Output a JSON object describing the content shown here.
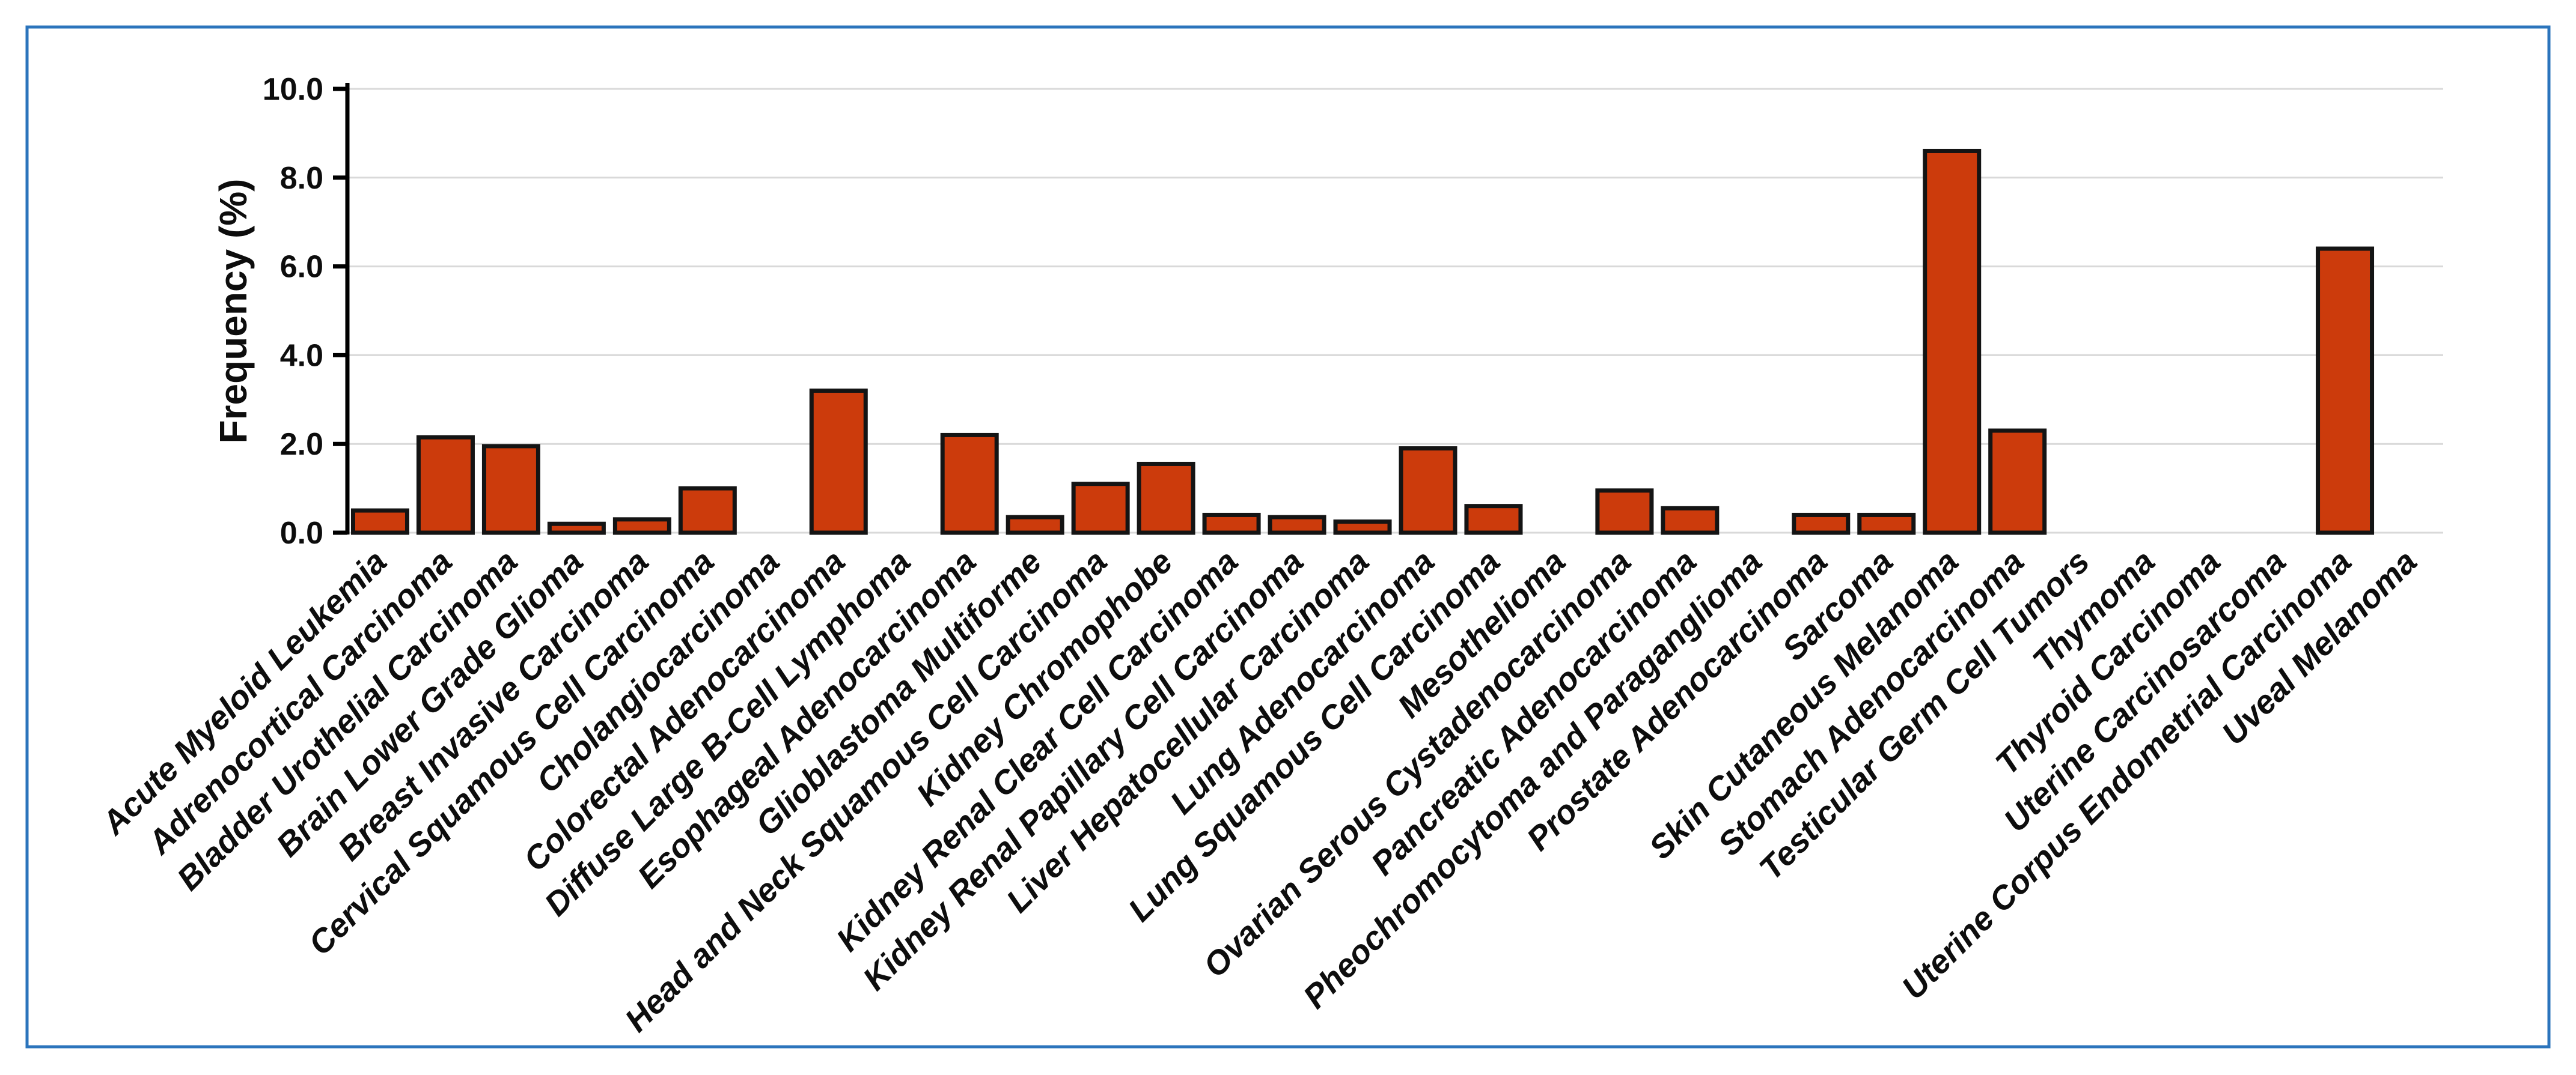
{
  "page": {
    "background_color": "#FFFFFF",
    "frame_border_color": "#2B74BC"
  },
  "chart_data": {
    "type": "bar",
    "title": "",
    "xlabel": "",
    "ylabel": "Frequency (%)",
    "ylim": [
      0,
      10
    ],
    "y_ticks": [
      "0.0",
      "2.0",
      "4.0",
      "6.0",
      "8.0",
      "10.0"
    ],
    "grid": true,
    "legend_position": "none",
    "bar_fill_color": "#CC3B0C",
    "bar_border_color": "#141414",
    "gridline_color": "#D9D9D9",
    "axis_line_color": "#000000",
    "categories": [
      "Acute Myeloid Leukemia",
      "Adrenocortical Carcinoma",
      "Bladder Urothelial Carcinoma",
      "Brain Lower Grade Glioma",
      "Breast Invasive Carcinoma",
      "Cervical Squamous Cell Carcinoma",
      "Cholangiocarcinoma",
      "Colorectal Adenocarcinoma",
      "Diffuse Large B-Cell Lymphoma",
      "Esophageal Adenocarcinoma",
      "Glioblastoma Multiforme",
      "Head and Neck Squamous Cell Carcinoma",
      "Kidney Chromophobe",
      "Kidney Renal Clear Cell Carcinoma",
      "Kidney Renal Papillary Cell Carcinoma",
      "Liver Hepatocellular Carcinoma",
      "Lung Adenocarcinoma",
      "Lung Squamous Cell Carcinoma",
      "Mesothelioma",
      "Ovarian Serous Cystadenocarcinoma",
      "Pancreatic Adenocarcinoma",
      "Pheochromocytoma and Paraganglioma",
      "Prostate Adenocarcinoma",
      "Sarcoma",
      "Skin Cutaneous Melanoma",
      "Stomach Adenocarcinoma",
      "Testicular Germ Cell Tumors",
      "Thymoma",
      "Thyroid Carcinoma",
      "Uterine Carcinosarcoma",
      "Uterine Corpus Endometrial Carcinoma",
      "Uveal Melanoma"
    ],
    "values": [
      0.5,
      2.15,
      1.95,
      0.2,
      0.3,
      1.0,
      0,
      3.2,
      0,
      2.2,
      0.35,
      1.1,
      1.55,
      0.4,
      0.35,
      0.25,
      1.9,
      0.6,
      0,
      0.95,
      0.55,
      0,
      0.4,
      0.4,
      8.6,
      2.3,
      0,
      0,
      0,
      0,
      6.4,
      0
    ]
  }
}
